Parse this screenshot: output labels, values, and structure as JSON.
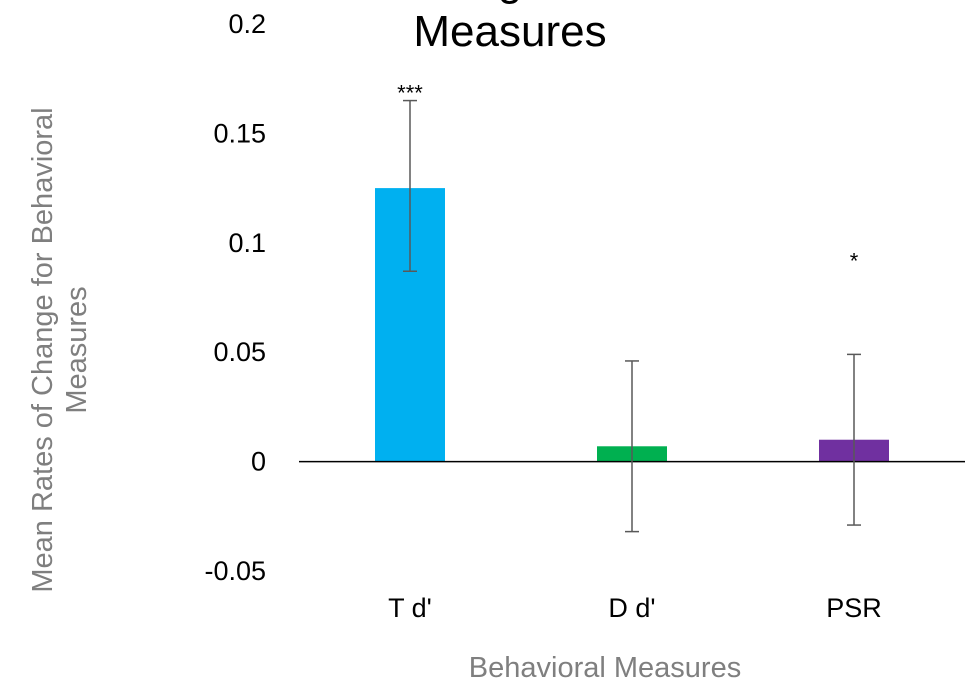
{
  "chart_data": {
    "type": "bar",
    "title": "Measures",
    "xlabel": "Behavioral Measures",
    "ylabel": "Mean Rates of Change for Behavioral Measures",
    "categories": [
      "T d'",
      "D d'",
      "PSR"
    ],
    "values": [
      0.125,
      0.007,
      0.01
    ],
    "error_low": [
      0.087,
      -0.032,
      -0.029
    ],
    "error_high": [
      0.165,
      0.046,
      0.049
    ],
    "significance": [
      "***",
      "",
      "*"
    ],
    "colors": [
      "#00b0f0",
      "#00b050",
      "#7030a0"
    ],
    "ylim": [
      -0.05,
      0.2
    ],
    "yticks": [
      "-0.05",
      "0",
      "0.05",
      "0.1",
      "0.15",
      "0.2"
    ],
    "grid": false,
    "legend": "none"
  }
}
